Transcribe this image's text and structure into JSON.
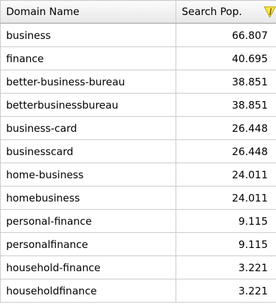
{
  "table": {
    "header": [
      "Domain Name",
      "Search Pop."
    ],
    "rows": [
      [
        "business",
        "66.807"
      ],
      [
        "finance",
        "40.695"
      ],
      [
        "better-business-bureau",
        "38.851"
      ],
      [
        "betterbusinessbureau",
        "38.851"
      ],
      [
        "business-card",
        "26.448"
      ],
      [
        "businesscard",
        "26.448"
      ],
      [
        "home-business",
        "24.011"
      ],
      [
        "homebusiness",
        "24.011"
      ],
      [
        "personal-finance",
        "9.115"
      ],
      [
        "personalfinance",
        "9.115"
      ],
      [
        "household-finance",
        "3.221"
      ],
      [
        "householdfinance",
        "3.221"
      ]
    ]
  }
}
